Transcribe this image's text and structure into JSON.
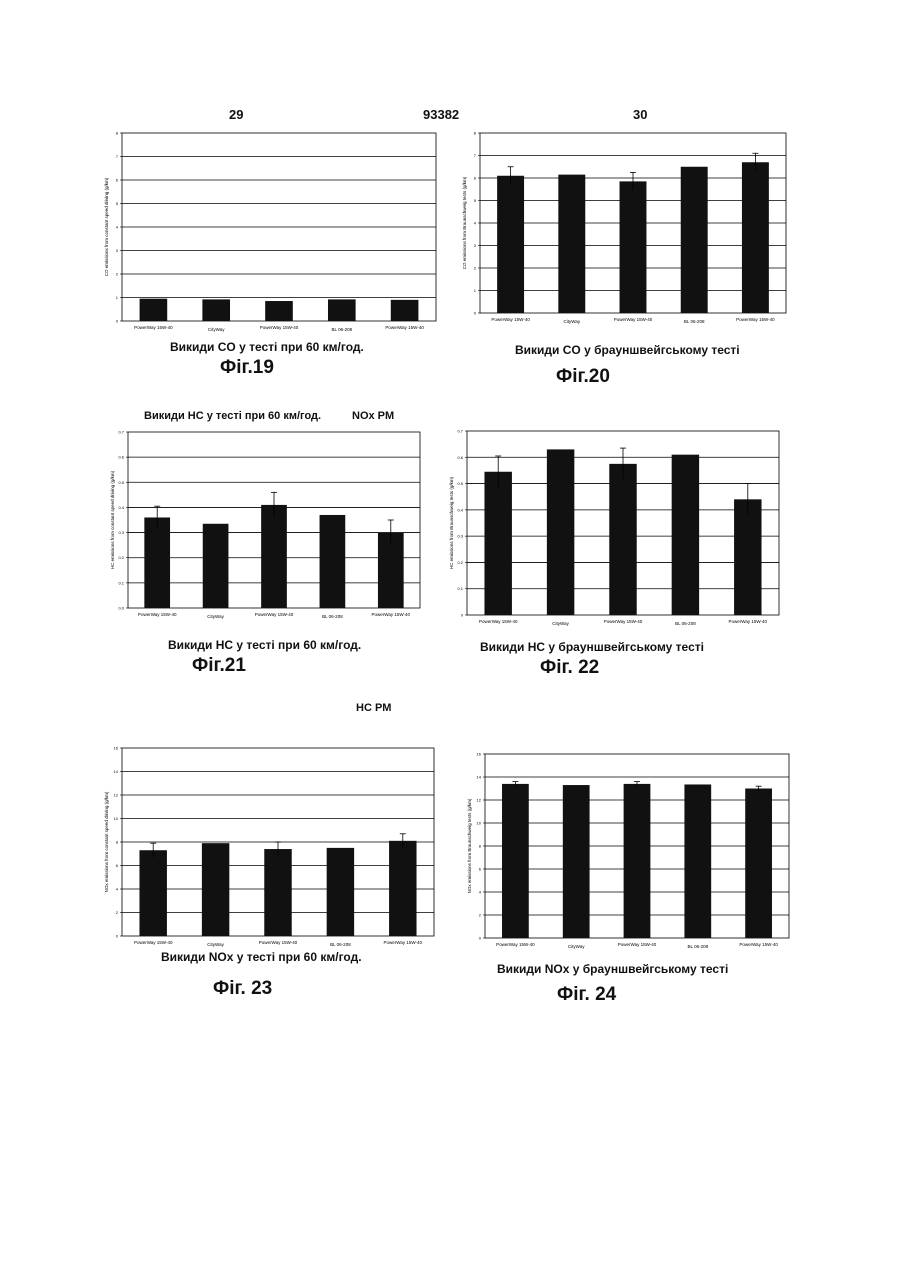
{
  "page": {
    "page_left": "29",
    "patent_no": "93382",
    "page_right": "30",
    "note_1": "Викиди HC у тесті при 60 км/год.",
    "note_1b": "NOx PM",
    "note_2": "HC PM"
  },
  "captions": {
    "c19": "Викиди CO у тесті при 60 км/год.",
    "c20": "Викиди CO у брауншвейгському тесті",
    "c21": "Викиди HC у тесті при 60 км/год.",
    "c22": "Викиди HC у брауншвейгському тесті",
    "c23": "Викиди NOx у тесті при 60 км/год.",
    "c24": "Викиди NOx у брауншвейгському тесті"
  },
  "figures": {
    "f19": "Фіг.19",
    "f20": "Фіг.20",
    "f21": "Фіг.21",
    "f22": "Фіг. 22",
    "f23": "Фіг. 23",
    "f24": "Фіг. 24"
  },
  "colors": {
    "bar": "#111111",
    "grid": "#000000",
    "axis": "#000000"
  },
  "chart_data": [
    {
      "id": "fig19",
      "type": "bar",
      "categories": [
        "PowerWay 15W-40",
        "CityWay",
        "PowerWay 15W-40",
        "BL 06-208",
        "PowerWay 15W-40"
      ],
      "values": [
        0.95,
        0.92,
        0.85,
        0.92,
        0.9
      ],
      "errors": [
        0,
        0,
        0,
        0,
        0
      ],
      "ylim": [
        0,
        8
      ],
      "yticks": [
        "0",
        "1",
        "2",
        "3",
        "4",
        "5",
        "6",
        "7",
        "8"
      ],
      "ylabel": "CO emissions from constant speed driving (g/km)",
      "grid": true
    },
    {
      "id": "fig20",
      "type": "bar",
      "categories": [
        "PowerWay 15W-40",
        "CityWay",
        "PowerWay 15W-40",
        "BL 06-208",
        "PowerWay 15W-40"
      ],
      "values": [
        6.1,
        6.15,
        5.85,
        6.5,
        6.7
      ],
      "errors": [
        0.4,
        0,
        0.4,
        0,
        0.4
      ],
      "ylim": [
        0,
        8
      ],
      "yticks": [
        "0",
        "1",
        "2",
        "3",
        "4",
        "5",
        "6",
        "7",
        "8"
      ],
      "ylabel": "CO emissions from Braunschweig tests (g/km)",
      "grid": true
    },
    {
      "id": "fig21",
      "type": "bar",
      "categories": [
        "PowerWay 15W-40",
        "CityWay",
        "PowerWay 15W-40",
        "BL 06-208",
        "PowerWay 15W-40"
      ],
      "values": [
        0.36,
        0.335,
        0.41,
        0.37,
        0.3
      ],
      "errors": [
        0.045,
        0,
        0.05,
        0,
        0.05
      ],
      "ylim": [
        0,
        0.7
      ],
      "yticks": [
        "0.0",
        "0.1",
        "0.2",
        "0.3",
        "0.4",
        "0.5",
        "0.6",
        "0.7"
      ],
      "ylabel": "HC emissions from constant speed driving (g/km)",
      "grid": true
    },
    {
      "id": "fig22",
      "type": "bar",
      "categories": [
        "PowerWay 15W-40",
        "CityWay",
        "PowerWay 15W-40",
        "BL 06-208",
        "PowerWay 15W-40"
      ],
      "values": [
        0.545,
        0.63,
        0.575,
        0.61,
        0.44
      ],
      "errors": [
        0.06,
        0,
        0.06,
        0,
        0.06
      ],
      "ylim": [
        0,
        0.7
      ],
      "yticks": [
        "0",
        "0.1",
        "0.2",
        "0.3",
        "0.4",
        "0.5",
        "0.6",
        "0.7"
      ],
      "ylabel": "HC emissions from Braunschweig tests (g/km)",
      "grid": true
    },
    {
      "id": "fig23",
      "type": "bar",
      "categories": [
        "PowerWay 15W-40",
        "CityWay",
        "PowerWay 15W-40",
        "BL 06-208",
        "PowerWay 15W-40"
      ],
      "values": [
        7.3,
        7.9,
        7.4,
        7.5,
        8.1
      ],
      "errors": [
        0.6,
        0,
        0.6,
        0,
        0.6
      ],
      "ylim": [
        0,
        16
      ],
      "yticks": [
        "0",
        "2",
        "4",
        "6",
        "8",
        "10",
        "12",
        "14",
        "16"
      ],
      "ylabel": "NOx emissions from constant speed driving (g/km)",
      "grid": true
    },
    {
      "id": "fig24",
      "type": "bar",
      "categories": [
        "PowerWay 15W-40",
        "CityWay",
        "PowerWay 15W-40",
        "BL 06-208",
        "PowerWay 15W-40"
      ],
      "values": [
        13.4,
        13.3,
        13.4,
        13.35,
        13.0
      ],
      "errors": [
        0.2,
        0,
        0.2,
        0,
        0.2
      ],
      "ylim": [
        0,
        16
      ],
      "yticks": [
        "0",
        "2",
        "4",
        "6",
        "8",
        "10",
        "12",
        "14",
        "16"
      ],
      "ylabel": "NOx emissions from Braunschweig tests (g/km)",
      "grid": true
    }
  ]
}
